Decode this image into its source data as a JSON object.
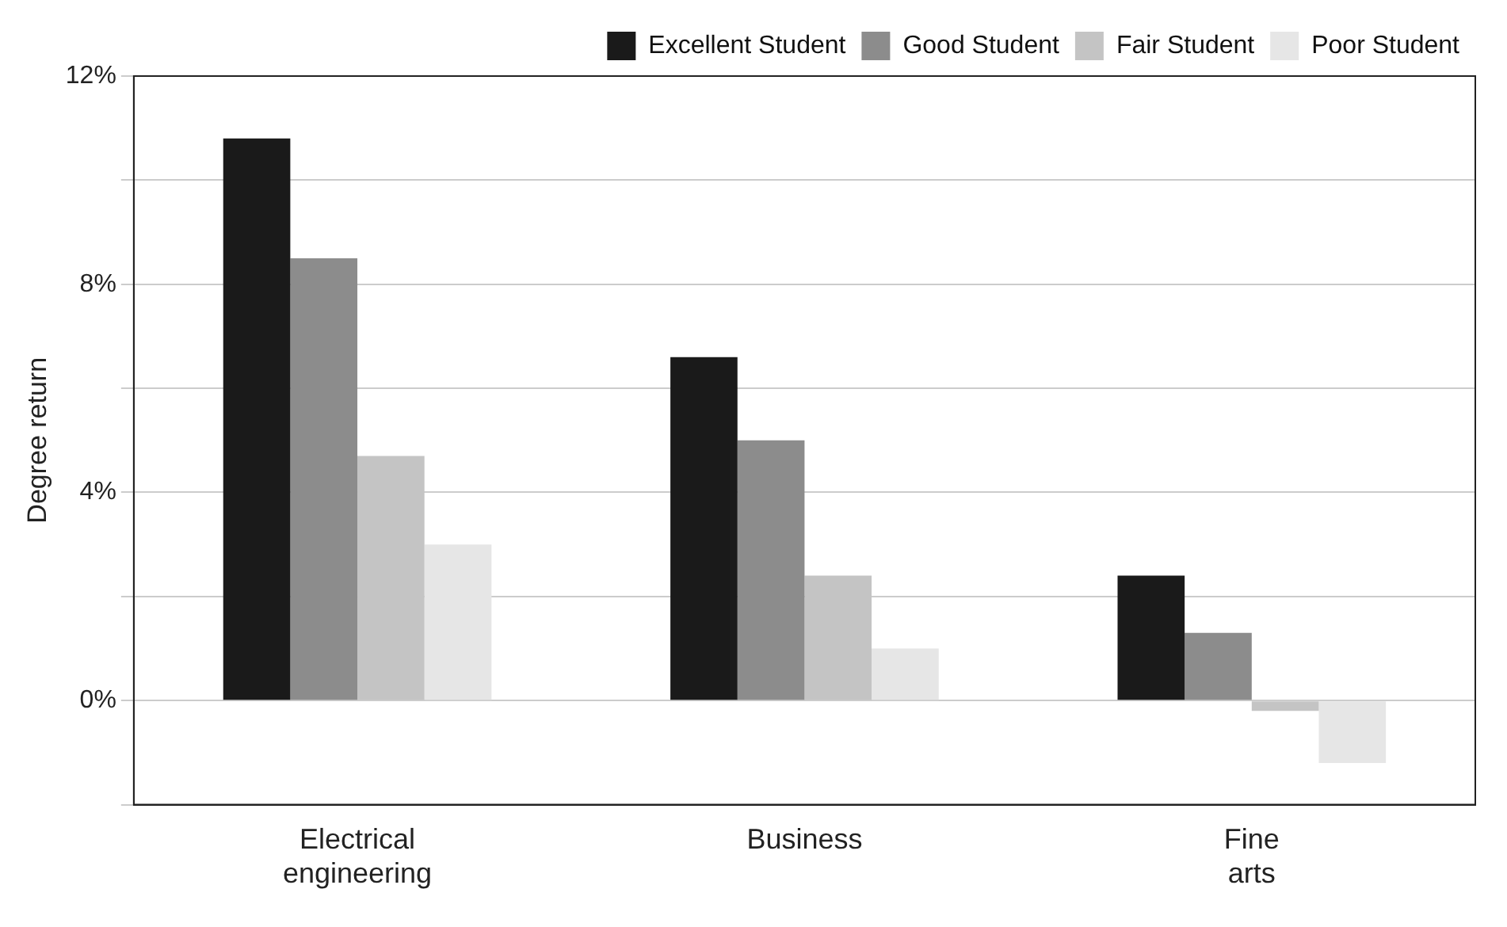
{
  "chart_data": {
    "type": "bar",
    "ylabel": "Degree return",
    "categories": [
      "Electrical engineering",
      "Business",
      "Fine arts"
    ],
    "series": [
      {
        "name": "Excellent Student",
        "color": "#1a1a1a",
        "values": [
          10.8,
          6.6,
          2.4
        ]
      },
      {
        "name": "Good Student",
        "color": "#8c8c8c",
        "values": [
          8.5,
          5.0,
          1.3
        ]
      },
      {
        "name": "Fair Student",
        "color": "#c4c4c4",
        "values": [
          4.7,
          2.4,
          -0.2
        ]
      },
      {
        "name": "Poor Student",
        "color": "#e6e6e6",
        "values": [
          3.0,
          1.0,
          -1.2
        ]
      }
    ],
    "ylim": [
      -2,
      12
    ],
    "yticks": [
      {
        "value": -2,
        "label": null
      },
      {
        "value": 0,
        "label": "0%"
      },
      {
        "value": 2,
        "label": null
      },
      {
        "value": 4,
        "label": "4%"
      },
      {
        "value": 6,
        "label": null
      },
      {
        "value": 8,
        "label": "8%"
      },
      {
        "value": 10,
        "label": null
      },
      {
        "value": 12,
        "label": "12%"
      }
    ],
    "grid": "y",
    "legend": "top right"
  }
}
